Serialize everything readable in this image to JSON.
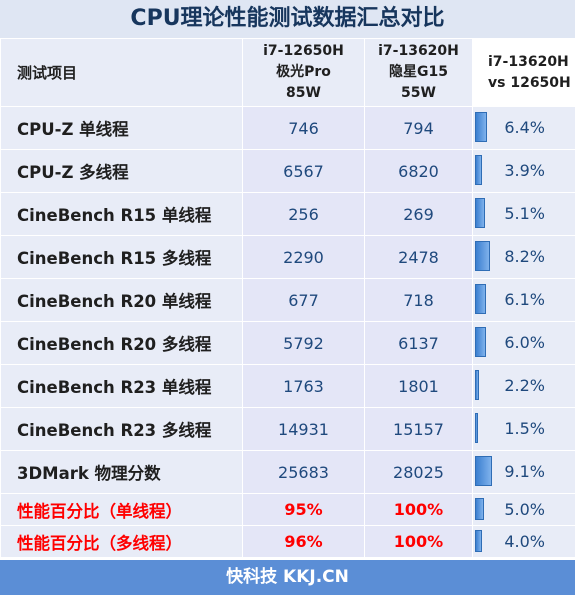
{
  "title": "CPU理论性能测试数据汇总对比",
  "footer": "快科技 KKJ.CN",
  "header": {
    "item": "测试项目",
    "col1": [
      "i7-12650H",
      "极光Pro",
      "85W"
    ],
    "col2": [
      "i7-13620H",
      "隐星G15",
      "55W"
    ],
    "col3": [
      "i7-13620H",
      "vs 12650H"
    ]
  },
  "colors": {
    "accent_blue": "#5b8ed6",
    "bar_blue": "#3b7fd0",
    "highlight_red": "#ff0000",
    "value_text": "#1f497d"
  },
  "chart_data": {
    "type": "table",
    "title": "CPU理论性能测试数据汇总对比",
    "columns": [
      "测试项目",
      "i7-12650H 极光Pro 85W",
      "i7-13620H 隐星G15 55W",
      "i7-13620H vs 12650H"
    ],
    "rows": [
      {
        "label": "CPU-Z 单线程",
        "a": "746",
        "b": "794",
        "diff": "6.4%",
        "diff_value": 6.4,
        "red": false
      },
      {
        "label": "CPU-Z 多线程",
        "a": "6567",
        "b": "6820",
        "diff": "3.9%",
        "diff_value": 3.9,
        "red": false
      },
      {
        "label": "CineBench R15 单线程",
        "a": "256",
        "b": "269",
        "diff": "5.1%",
        "diff_value": 5.1,
        "red": false
      },
      {
        "label": "CineBench R15 多线程",
        "a": "2290",
        "b": "2478",
        "diff": "8.2%",
        "diff_value": 8.2,
        "red": false
      },
      {
        "label": "CineBench R20 单线程",
        "a": "677",
        "b": "718",
        "diff": "6.1%",
        "diff_value": 6.1,
        "red": false
      },
      {
        "label": "CineBench R20 多线程",
        "a": "5792",
        "b": "6137",
        "diff": "6.0%",
        "diff_value": 6.0,
        "red": false
      },
      {
        "label": "CineBench R23 单线程",
        "a": "1763",
        "b": "1801",
        "diff": "2.2%",
        "diff_value": 2.2,
        "red": false
      },
      {
        "label": "CineBench R23 多线程",
        "a": "14931",
        "b": "15157",
        "diff": "1.5%",
        "diff_value": 1.5,
        "red": false
      },
      {
        "label": "3DMark 物理分数",
        "a": "25683",
        "b": "28025",
        "diff": "9.1%",
        "diff_value": 9.1,
        "red": false
      },
      {
        "label": "性能百分比（单线程）",
        "a": "95%",
        "b": "100%",
        "diff": "5.0%",
        "diff_value": 5.0,
        "red": true
      },
      {
        "label": "性能百分比（多线程）",
        "a": "96%",
        "b": "100%",
        "diff": "4.0%",
        "diff_value": 4.0,
        "red": true
      }
    ]
  }
}
